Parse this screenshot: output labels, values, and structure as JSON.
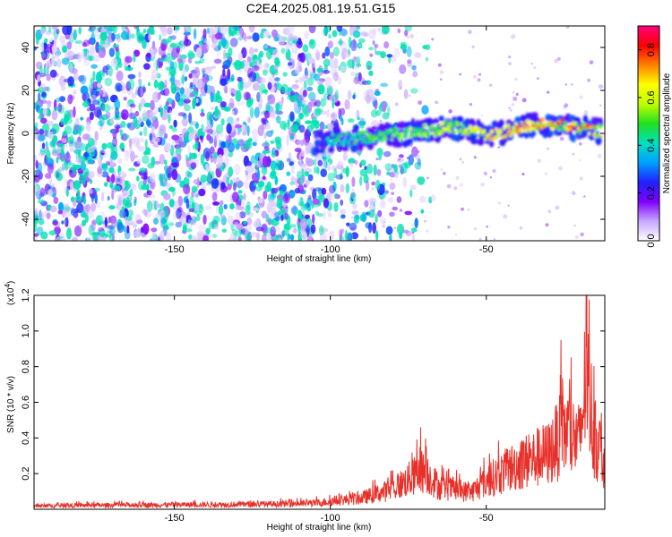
{
  "title": "C2E4.2025.081.19.51.G15",
  "chart_data": [
    {
      "type": "heatmap",
      "xlabel": "Height of straight line (km)",
      "ylabel": "Frequency (Hz)",
      "xlim": [
        -195,
        -12
      ],
      "ylim": [
        -50,
        50
      ],
      "xticks": [
        -150,
        -100,
        -50
      ],
      "yticks": [
        40,
        20,
        0,
        -20,
        -40
      ],
      "colorbar": {
        "label": "Normalized spectral amplitude",
        "range": [
          0.0,
          0.9
        ],
        "ticks": [
          0.8,
          0.6,
          0.4,
          0.2,
          0.0
        ],
        "colors": [
          "#ffffff",
          "#c8a8ff",
          "#8000ff",
          "#2020ff",
          "#00a0ff",
          "#00e0c0",
          "#20e020",
          "#c0ff00",
          "#ffff00",
          "#ff8000",
          "#ff0000",
          "#ff0080"
        ]
      },
      "ridge": [
        {
          "x": -105,
          "y": -4
        },
        {
          "x": -90,
          "y": -2
        },
        {
          "x": -75,
          "y": 0
        },
        {
          "x": -60,
          "y": 3
        },
        {
          "x": -50,
          "y": -1
        },
        {
          "x": -40,
          "y": 2
        },
        {
          "x": -30,
          "y": 5
        },
        {
          "x": -20,
          "y": 2
        },
        {
          "x": -13,
          "y": 1
        }
      ],
      "ridge_peak": {
        "x_range": [
          -35,
          -13
        ],
        "amplitude": 0.85
      },
      "noise_region": {
        "x_range": [
          -195,
          -90
        ],
        "amplitude": 0.35
      }
    },
    {
      "type": "line",
      "xlabel": "Height of straight line (km)",
      "ylabel": "SNR (10 * v/v)",
      "multiplier_label": "(x10",
      "multiplier_exp": "4",
      "multiplier_close": ")",
      "xlim": [
        -195,
        -12
      ],
      "ylim": [
        0,
        1.2
      ],
      "xticks": [
        -150,
        -100,
        -50
      ],
      "yticks": [
        1.2,
        1.0,
        0.8,
        0.6,
        0.4,
        0.2
      ],
      "color": "#e8302a",
      "series_envelope": [
        {
          "x": -195,
          "y": 0.03
        },
        {
          "x": -180,
          "y": 0.035
        },
        {
          "x": -150,
          "y": 0.04
        },
        {
          "x": -120,
          "y": 0.045
        },
        {
          "x": -105,
          "y": 0.055
        },
        {
          "x": -90,
          "y": 0.1
        },
        {
          "x": -80,
          "y": 0.18
        },
        {
          "x": -70,
          "y": 0.35
        },
        {
          "x": -65,
          "y": 0.2
        },
        {
          "x": -55,
          "y": 0.15
        },
        {
          "x": -50,
          "y": 0.25
        },
        {
          "x": -40,
          "y": 0.4
        },
        {
          "x": -30,
          "y": 0.5
        },
        {
          "x": -25,
          "y": 0.7
        },
        {
          "x": -20,
          "y": 0.6
        },
        {
          "x": -18,
          "y": 1.2
        },
        {
          "x": -15,
          "y": 0.6
        },
        {
          "x": -12,
          "y": 0.45
        }
      ],
      "peaks": [
        {
          "x": -71,
          "y": 0.46
        },
        {
          "x": -26,
          "y": 0.95
        },
        {
          "x": -18,
          "y": 1.2
        },
        {
          "x": -15,
          "y": 0.61
        }
      ]
    }
  ]
}
